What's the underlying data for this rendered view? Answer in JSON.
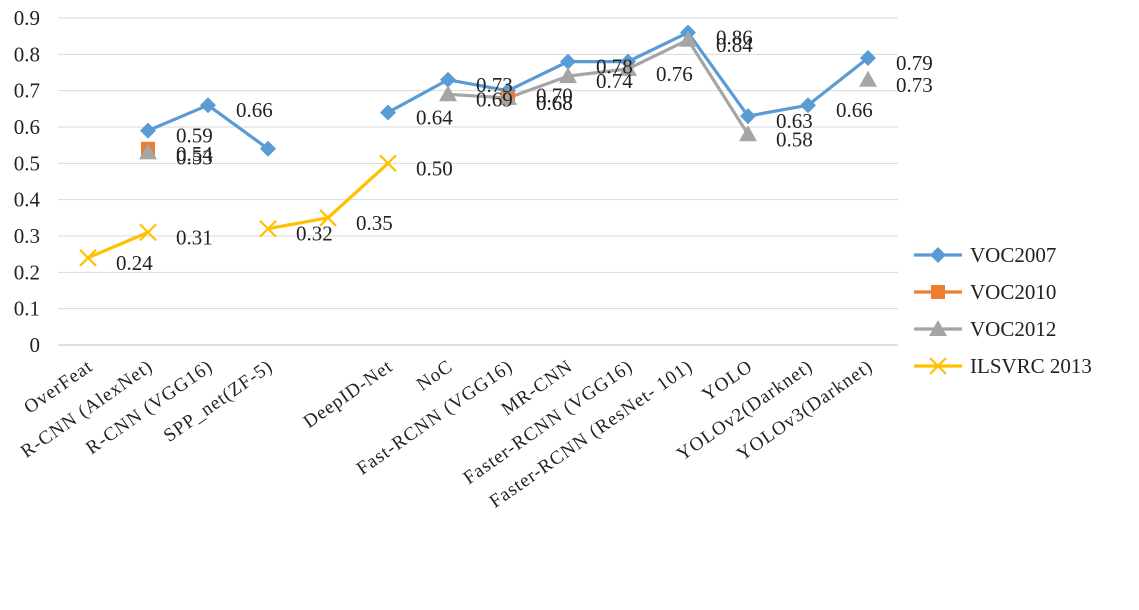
{
  "chart_data": {
    "type": "line",
    "title": "",
    "xlabel": "",
    "ylabel": "",
    "ylim": [
      0,
      0.9
    ],
    "yticks": [
      "0",
      "0.1",
      "0.2",
      "0.3",
      "0.4",
      "0.5",
      "0.6",
      "0.7",
      "0.8",
      "0.9"
    ],
    "grid": true,
    "legend_position": "right",
    "categories": [
      "OverFeat",
      "R-CNN (AlexNet)",
      "R-CNN (VGG16)",
      "SPP_net(ZF-5)",
      "",
      "DeepID-Net",
      "NoC",
      "Fast-RCNN (VGG16)",
      "MR-CNN",
      "Faster-RCNN (VGG16)",
      "Faster-RCNN (ResNet- 101)",
      "YOLO",
      "YOLOv2(Darknet)",
      "YOLOv3(Darknet)"
    ],
    "series": [
      {
        "name": "VOC2007",
        "color": "#5B9BD5",
        "marker": "diamond",
        "values": [
          null,
          0.59,
          0.66,
          0.54,
          null,
          0.64,
          0.73,
          0.7,
          0.78,
          0.78,
          0.86,
          0.63,
          0.66,
          0.79
        ],
        "labels": [
          null,
          "0.59",
          "0.66",
          null,
          null,
          "0.64",
          "0.73",
          "0.70",
          "0.78",
          null,
          "0.86",
          "0.63",
          "0.66",
          "0.79"
        ]
      },
      {
        "name": "VOC2010",
        "color": "#ED7D31",
        "marker": "square",
        "values": [
          null,
          0.54,
          null,
          null,
          null,
          null,
          null,
          0.68,
          null,
          null,
          null,
          null,
          null,
          null
        ],
        "labels": [
          null,
          "0.54",
          null,
          null,
          null,
          null,
          null,
          "0.68",
          null,
          null,
          null,
          null,
          null,
          null
        ]
      },
      {
        "name": "VOC2012",
        "color": "#A5A5A5",
        "marker": "triangle",
        "values": [
          null,
          0.53,
          null,
          null,
          null,
          null,
          0.69,
          0.68,
          0.74,
          0.76,
          0.84,
          0.58,
          null,
          0.73
        ],
        "labels": [
          null,
          "0.53",
          null,
          null,
          null,
          null,
          "0.69",
          "0.68",
          "0.74",
          "0.76",
          "0.84",
          "0.58",
          null,
          "0.73"
        ]
      },
      {
        "name": "ILSVRC 2013",
        "color": "#FFC000",
        "marker": "x",
        "values": [
          0.24,
          0.31,
          null,
          0.32,
          0.35,
          0.5,
          null,
          null,
          null,
          null,
          null,
          null,
          null,
          null
        ],
        "labels": [
          "0.24",
          "0.31",
          null,
          "0.32",
          "0.35",
          "0.50",
          null,
          null,
          null,
          null,
          null,
          null,
          null,
          null
        ]
      }
    ]
  }
}
